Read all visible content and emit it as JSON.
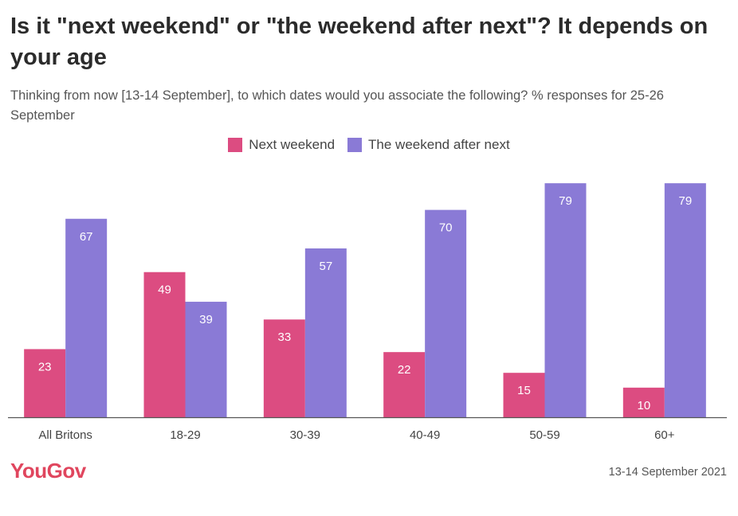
{
  "title": "Is it \"next weekend\" or \"the weekend after next\"? It depends on your age",
  "subtitle": "Thinking from now [13-14 September], to which dates would you associate the following? % responses for 25-26 September",
  "logo": "YouGov",
  "date": "13-14 September 2021",
  "colors": {
    "next_weekend": "#dc4c81",
    "after_next": "#8a7ad6",
    "axis": "#555555",
    "brand": "#e0465e"
  },
  "chart_data": {
    "type": "bar",
    "title": "Is it \"next weekend\" or \"the weekend after next\"? It depends on your age",
    "xlabel": "",
    "ylabel": "",
    "ylim": [
      0,
      80
    ],
    "grid": false,
    "legend": "top-center",
    "categories": [
      "All Britons",
      "18-29",
      "30-39",
      "40-49",
      "50-59",
      "60+"
    ],
    "series": [
      {
        "name": "Next weekend",
        "values": [
          23,
          49,
          33,
          22,
          15,
          10
        ],
        "color": "#dc4c81"
      },
      {
        "name": "The weekend after next",
        "values": [
          67,
          39,
          57,
          70,
          79,
          79
        ],
        "color": "#8a7ad6"
      }
    ]
  }
}
